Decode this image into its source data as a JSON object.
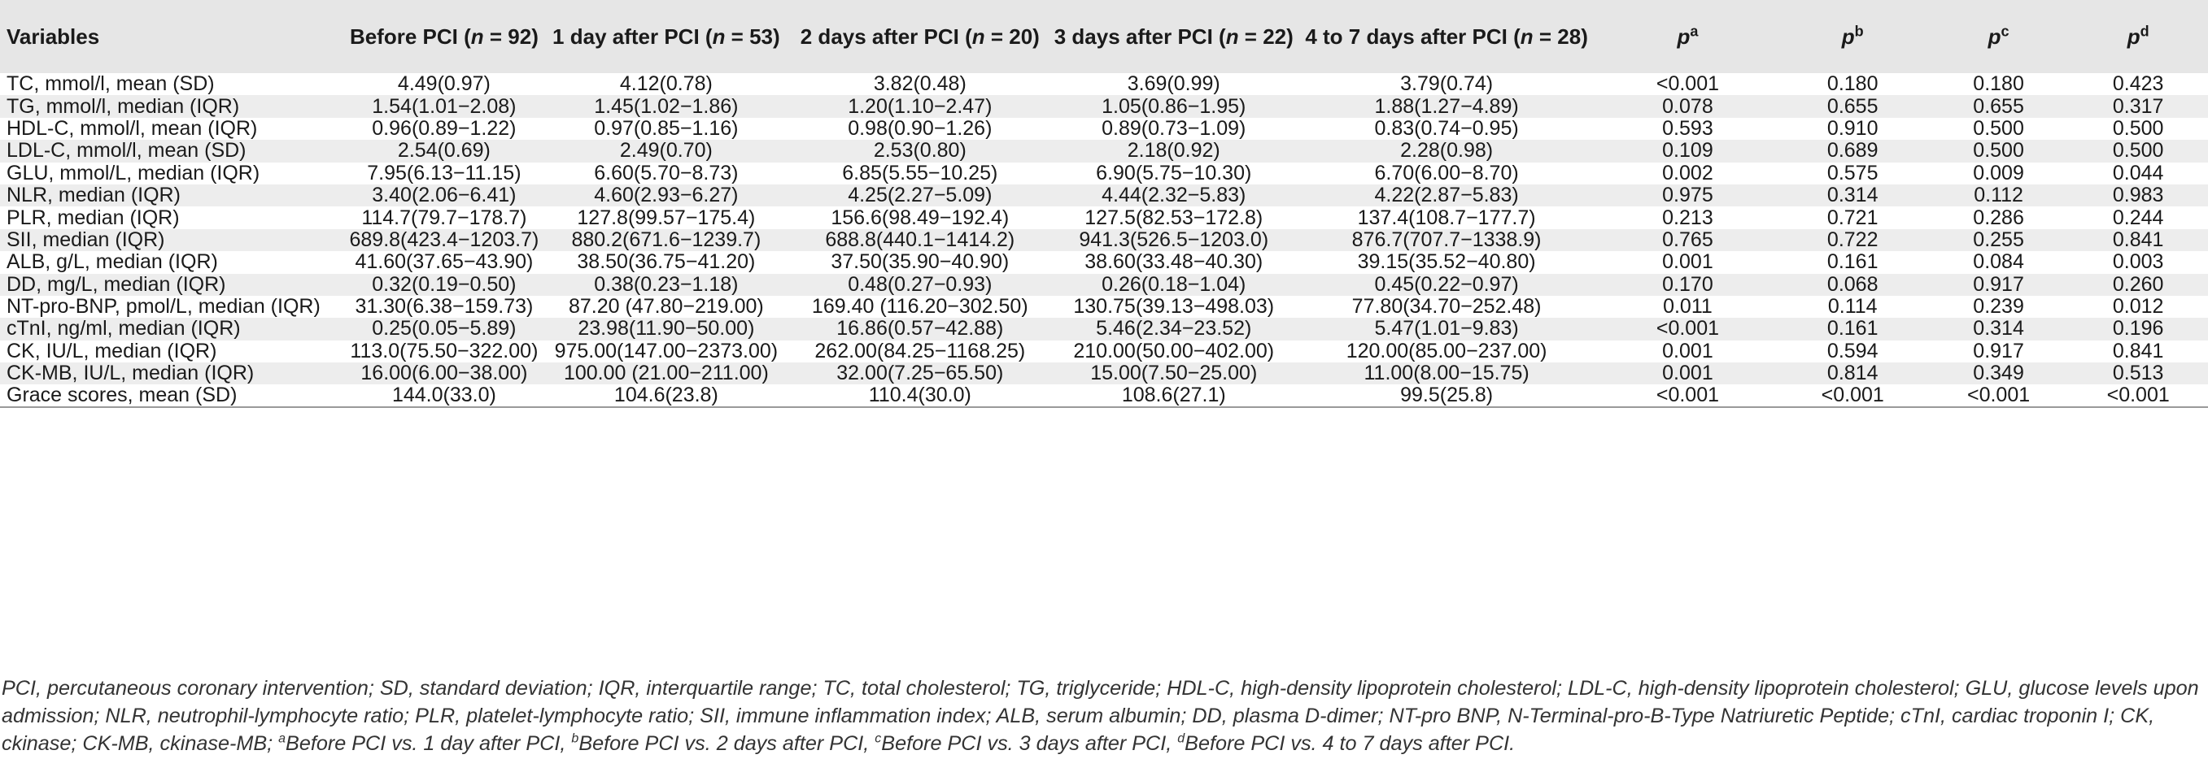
{
  "table": {
    "headers": {
      "variables": "Variables",
      "before": {
        "pre": "Before PCI (",
        "n": "n",
        "post": " = 92)"
      },
      "day1": {
        "pre": "1 day after PCI (",
        "n": "n",
        "post": " = 53)"
      },
      "day2": {
        "pre": "2 days after PCI (",
        "n": "n",
        "post": " = 20)"
      },
      "day3": {
        "pre": "3 days after PCI (",
        "n": "n",
        "post": " = 22)"
      },
      "day47": {
        "pre": "4 to 7 days after PCI (",
        "n": "n",
        "post": " = 28)"
      },
      "pa": {
        "p": "p",
        "sup": "a"
      },
      "pb": {
        "p": "p",
        "sup": "b"
      },
      "pc": {
        "p": "p",
        "sup": "c"
      },
      "pd": {
        "p": "p",
        "sup": "d"
      }
    },
    "rows": [
      [
        "TC, mmol/l, mean (SD)",
        "4.49(0.97)",
        "4.12(0.78)",
        "3.82(0.48)",
        "3.69(0.99)",
        "3.79(0.74)",
        "<0.001",
        "0.180",
        "0.180",
        "0.423"
      ],
      [
        "TG, mmol/l, median (IQR)",
        "1.54(1.01−2.08)",
        "1.45(1.02−1.86)",
        "1.20(1.10−2.47)",
        "1.05(0.86−1.95)",
        "1.88(1.27−4.89)",
        "0.078",
        "0.655",
        "0.655",
        "0.317"
      ],
      [
        "HDL-C, mmol/l, mean (IQR)",
        "0.96(0.89−1.22)",
        "0.97(0.85−1.16)",
        "0.98(0.90−1.26)",
        "0.89(0.73−1.09)",
        "0.83(0.74−0.95)",
        "0.593",
        "0.910",
        "0.500",
        "0.500"
      ],
      [
        "LDL-C, mmol/l, mean (SD)",
        "2.54(0.69)",
        "2.49(0.70)",
        "2.53(0.80)",
        "2.18(0.92)",
        "2.28(0.98)",
        "0.109",
        "0.689",
        "0.500",
        "0.500"
      ],
      [
        "GLU, mmol/L, median (IQR)",
        "7.95(6.13−11.15)",
        "6.60(5.70−8.73)",
        "6.85(5.55−10.25)",
        "6.90(5.75−10.30)",
        "6.70(6.00−8.70)",
        "0.002",
        "0.575",
        "0.009",
        "0.044"
      ],
      [
        "NLR, median (IQR)",
        "3.40(2.06−6.41)",
        "4.60(2.93−6.27)",
        "4.25(2.27−5.09)",
        "4.44(2.32−5.83)",
        "4.22(2.87−5.83)",
        "0.975",
        "0.314",
        "0.112",
        "0.983"
      ],
      [
        "PLR, median (IQR)",
        "114.7(79.7−178.7)",
        "127.8(99.57−175.4)",
        "156.6(98.49−192.4)",
        "127.5(82.53−172.8)",
        "137.4(108.7−177.7)",
        "0.213",
        "0.721",
        "0.286",
        "0.244"
      ],
      [
        "SII, median (IQR)",
        "689.8(423.4−1203.7)",
        "880.2(671.6−1239.7)",
        "688.8(440.1−1414.2)",
        "941.3(526.5−1203.0)",
        "876.7(707.7−1338.9)",
        "0.765",
        "0.722",
        "0.255",
        "0.841"
      ],
      [
        "ALB, g/L, median (IQR)",
        "41.60(37.65−43.90)",
        "38.50(36.75−41.20)",
        "37.50(35.90−40.90)",
        "38.60(33.48−40.30)",
        "39.15(35.52−40.80)",
        "0.001",
        "0.161",
        "0.084",
        "0.003"
      ],
      [
        "DD, mg/L, median (IQR)",
        "0.32(0.19−0.50)",
        "0.38(0.23−1.18)",
        "0.48(0.27−0.93)",
        "0.26(0.18−1.04)",
        "0.45(0.22−0.97)",
        "0.170",
        "0.068",
        "0.917",
        "0.260"
      ],
      [
        "NT-pro-BNP, pmol/L, median (IQR)",
        "31.30(6.38−159.73)",
        "87.20 (47.80−219.00)",
        "169.40 (116.20−302.50)",
        "130.75(39.13−498.03)",
        "77.80(34.70−252.48)",
        "0.011",
        "0.114",
        "0.239",
        "0.012"
      ],
      [
        "cTnI, ng/ml, median (IQR)",
        "0.25(0.05−5.89)",
        "23.98(11.90−50.00)",
        "16.86(0.57−42.88)",
        "5.46(2.34−23.52)",
        "5.47(1.01−9.83)",
        "<0.001",
        "0.161",
        "0.314",
        "0.196"
      ],
      [
        "CK, IU/L, median (IQR)",
        "113.0(75.50−322.00)",
        "975.00(147.00−2373.00)",
        "262.00(84.25−1168.25)",
        "210.00(50.00−402.00)",
        "120.00(85.00−237.00)",
        "0.001",
        "0.594",
        "0.917",
        "0.841"
      ],
      [
        "CK-MB, IU/L, median (IQR)",
        "16.00(6.00−38.00)",
        "100.00 (21.00−211.00)",
        "32.00(7.25−65.50)",
        "15.00(7.50−25.00)",
        "11.00(8.00−15.75)",
        "0.001",
        "0.814",
        "0.349",
        "0.513"
      ],
      [
        "Grace scores, mean (SD)",
        "144.0(33.0)",
        "104.6(23.8)",
        "110.4(30.0)",
        "108.6(27.1)",
        "99.5(25.8)",
        "<0.001",
        "<0.001",
        "<0.001",
        "<0.001"
      ]
    ]
  },
  "footnote": {
    "abbreviations": "PCI, percutaneous coronary intervention; SD, standard deviation; IQR, interquartile range; TC, total cholesterol; TG, triglyceride; HDL-C, high-density lipoprotein cholesterol; LDL-C, high-density lipoprotein cholesterol; GLU, glucose levels upon admission; NLR, neutrophil-lymphocyte ratio; PLR, platelet-lymphocyte ratio; SII, immune inflammation index; ALB, serum albumin; DD, plasma D-dimer; NT-pro BNP, N-Terminal-pro-B-Type Natriuretic Peptide; cTnI, cardiac troponin I; CK, ckinase; CK-MB, ckinase-MB; ",
    "notes": [
      {
        "sup": "a",
        "text": "Before PCI vs. 1 day after PCI, "
      },
      {
        "sup": "b",
        "text": "Before PCI vs. 2 days after PCI, "
      },
      {
        "sup": "c",
        "text": "Before PCI vs. 3 days after PCI, "
      },
      {
        "sup": "d",
        "text": "Before PCI vs. 4 to 7 days after PCI."
      }
    ]
  }
}
